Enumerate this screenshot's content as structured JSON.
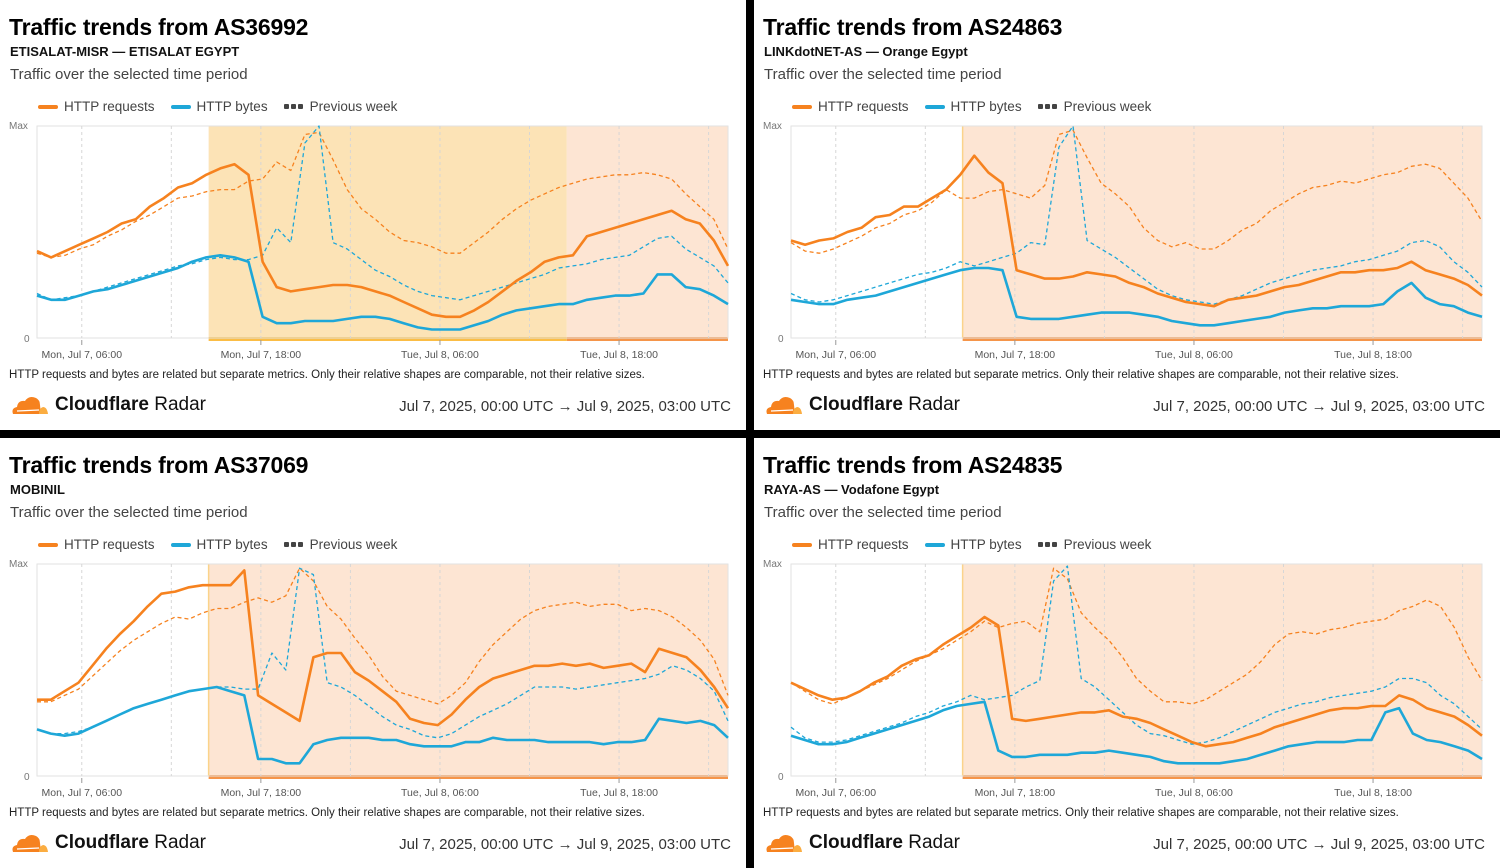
{
  "common": {
    "description": "Traffic over the selected time period",
    "legend": {
      "requests": "HTTP requests",
      "bytes": "HTTP bytes",
      "previous": "Previous week"
    },
    "note": "HTTP requests and bytes are related but separate metrics. Only their relative shapes are comparable, not their relative sizes.",
    "brand_bold": "Cloudflare",
    "brand_light": " Radar",
    "date_range": "Jul 7, 2025, 00:00 UTC → Jul 9, 2025, 03:00 UTC",
    "colors": {
      "requests": "#f6821f",
      "bytes": "#1ea7d8",
      "outage_yellow": "#fce3b6",
      "outage_orange": "#fde5d3",
      "bar_yellow": "#fbbd45",
      "bar_orange": "#f5954a"
    }
  },
  "panels": [
    {
      "title": "Traffic trends from AS36992",
      "subtitle": "ETISALAT-MISR — ETISALAT EGYPT"
    },
    {
      "title": "Traffic trends from AS24863",
      "subtitle": "LINKdotNET-AS — Orange Egypt"
    },
    {
      "title": "Traffic trends from AS37069",
      "subtitle": "MOBINIL"
    },
    {
      "title": "Traffic trends from AS24835",
      "subtitle": "RAYA-AS — Vodafone Egypt"
    }
  ],
  "chart_data": [
    {
      "type": "line",
      "title": "Traffic trends from AS36992",
      "x_start": "Jul 7 03:00 UTC",
      "x_step_hours": 1,
      "xticks": [
        "Mon, Jul 7, 06:00",
        "Mon, Jul 7, 18:00",
        "Tue, Jul 8, 06:00",
        "Tue, Jul 8, 18:00"
      ],
      "yticks": [
        "0",
        "Max"
      ],
      "ylim": [
        0,
        1
      ],
      "outages": [
        {
          "start_hour": 14.5,
          "end_hour": 38.5,
          "kind": "partial"
        },
        {
          "start_hour": 38.5,
          "end_hour": 51,
          "kind": "recovery"
        }
      ],
      "series": [
        {
          "name": "HTTP requests",
          "values": [
            0.41,
            0.38,
            0.41,
            0.44,
            0.47,
            0.5,
            0.54,
            0.56,
            0.62,
            0.66,
            0.71,
            0.73,
            0.77,
            0.8,
            0.82,
            0.77,
            0.36,
            0.24,
            0.22,
            0.23,
            0.24,
            0.25,
            0.25,
            0.24,
            0.22,
            0.2,
            0.17,
            0.14,
            0.11,
            0.1,
            0.1,
            0.13,
            0.17,
            0.22,
            0.27,
            0.31,
            0.36,
            0.38,
            0.39,
            0.48,
            0.5,
            0.52,
            0.54,
            0.56,
            0.58,
            0.6,
            0.56,
            0.54,
            0.46,
            0.34
          ]
        },
        {
          "name": "HTTP bytes",
          "values": [
            0.2,
            0.18,
            0.18,
            0.2,
            0.22,
            0.23,
            0.25,
            0.27,
            0.29,
            0.31,
            0.33,
            0.36,
            0.38,
            0.39,
            0.38,
            0.36,
            0.1,
            0.07,
            0.07,
            0.08,
            0.08,
            0.08,
            0.09,
            0.1,
            0.1,
            0.09,
            0.07,
            0.05,
            0.04,
            0.04,
            0.04,
            0.06,
            0.08,
            0.11,
            0.13,
            0.14,
            0.15,
            0.16,
            0.16,
            0.18,
            0.19,
            0.2,
            0.2,
            0.21,
            0.3,
            0.3,
            0.24,
            0.23,
            0.2,
            0.16
          ]
        },
        {
          "name": "HTTP requests (previous week)",
          "dashed": true,
          "values": [
            0.4,
            0.38,
            0.39,
            0.42,
            0.44,
            0.48,
            0.51,
            0.55,
            0.58,
            0.62,
            0.66,
            0.67,
            0.69,
            0.7,
            0.7,
            0.74,
            0.75,
            0.83,
            0.79,
            0.96,
            0.97,
            0.84,
            0.7,
            0.61,
            0.56,
            0.5,
            0.46,
            0.45,
            0.43,
            0.4,
            0.4,
            0.45,
            0.5,
            0.56,
            0.61,
            0.65,
            0.68,
            0.71,
            0.73,
            0.75,
            0.76,
            0.77,
            0.77,
            0.78,
            0.77,
            0.75,
            0.68,
            0.62,
            0.56,
            0.42
          ]
        },
        {
          "name": "HTTP bytes (previous week)",
          "dashed": true,
          "values": [
            0.21,
            0.18,
            0.19,
            0.2,
            0.22,
            0.24,
            0.26,
            0.28,
            0.3,
            0.32,
            0.34,
            0.35,
            0.37,
            0.38,
            0.37,
            0.37,
            0.39,
            0.52,
            0.45,
            0.92,
            1.0,
            0.45,
            0.42,
            0.37,
            0.32,
            0.29,
            0.25,
            0.22,
            0.2,
            0.19,
            0.18,
            0.2,
            0.22,
            0.24,
            0.26,
            0.28,
            0.3,
            0.33,
            0.34,
            0.35,
            0.37,
            0.38,
            0.39,
            0.43,
            0.47,
            0.48,
            0.42,
            0.38,
            0.34,
            0.26
          ]
        }
      ]
    },
    {
      "type": "line",
      "title": "Traffic trends from AS24863",
      "x_start": "Jul 7 03:00 UTC",
      "x_step_hours": 1,
      "xticks": [
        "Mon, Jul 7, 06:00",
        "Mon, Jul 7, 18:00",
        "Tue, Jul 8, 06:00",
        "Tue, Jul 8, 18:00"
      ],
      "yticks": [
        "0",
        "Max"
      ],
      "ylim": [
        0,
        1
      ],
      "outages": [
        {
          "start_hour": 14.5,
          "end_hour": 51,
          "kind": "recovery"
        }
      ],
      "series": [
        {
          "name": "HTTP requests",
          "values": [
            0.46,
            0.44,
            0.46,
            0.47,
            0.5,
            0.52,
            0.57,
            0.58,
            0.62,
            0.62,
            0.66,
            0.7,
            0.77,
            0.86,
            0.78,
            0.73,
            0.32,
            0.3,
            0.28,
            0.28,
            0.29,
            0.31,
            0.3,
            0.29,
            0.26,
            0.24,
            0.21,
            0.19,
            0.17,
            0.16,
            0.15,
            0.18,
            0.19,
            0.2,
            0.22,
            0.24,
            0.25,
            0.27,
            0.29,
            0.31,
            0.31,
            0.32,
            0.32,
            0.33,
            0.36,
            0.32,
            0.3,
            0.28,
            0.25,
            0.2
          ]
        },
        {
          "name": "HTTP bytes",
          "values": [
            0.18,
            0.17,
            0.16,
            0.16,
            0.18,
            0.19,
            0.2,
            0.22,
            0.24,
            0.26,
            0.28,
            0.3,
            0.32,
            0.33,
            0.33,
            0.32,
            0.1,
            0.09,
            0.09,
            0.09,
            0.1,
            0.11,
            0.12,
            0.12,
            0.12,
            0.11,
            0.1,
            0.08,
            0.07,
            0.06,
            0.06,
            0.07,
            0.08,
            0.09,
            0.1,
            0.12,
            0.13,
            0.14,
            0.14,
            0.15,
            0.15,
            0.15,
            0.16,
            0.22,
            0.26,
            0.19,
            0.16,
            0.15,
            0.12,
            0.1
          ]
        },
        {
          "name": "HTTP requests (previous week)",
          "dashed": true,
          "values": [
            0.45,
            0.41,
            0.4,
            0.42,
            0.45,
            0.48,
            0.52,
            0.54,
            0.58,
            0.6,
            0.64,
            0.7,
            0.66,
            0.66,
            0.69,
            0.7,
            0.68,
            0.66,
            0.72,
            0.96,
            0.98,
            0.85,
            0.73,
            0.68,
            0.62,
            0.52,
            0.46,
            0.43,
            0.45,
            0.42,
            0.42,
            0.46,
            0.51,
            0.54,
            0.6,
            0.64,
            0.68,
            0.71,
            0.72,
            0.74,
            0.73,
            0.75,
            0.77,
            0.78,
            0.81,
            0.82,
            0.8,
            0.73,
            0.66,
            0.55
          ]
        },
        {
          "name": "HTTP bytes (previous week)",
          "dashed": true,
          "values": [
            0.21,
            0.18,
            0.17,
            0.18,
            0.2,
            0.22,
            0.24,
            0.26,
            0.28,
            0.3,
            0.31,
            0.33,
            0.36,
            0.34,
            0.36,
            0.38,
            0.4,
            0.45,
            0.44,
            0.9,
            1.0,
            0.46,
            0.42,
            0.38,
            0.33,
            0.28,
            0.23,
            0.2,
            0.18,
            0.17,
            0.16,
            0.18,
            0.2,
            0.23,
            0.26,
            0.28,
            0.3,
            0.32,
            0.33,
            0.34,
            0.36,
            0.37,
            0.39,
            0.41,
            0.45,
            0.46,
            0.43,
            0.36,
            0.31,
            0.24
          ]
        }
      ]
    },
    {
      "type": "line",
      "title": "Traffic trends from AS37069",
      "x_start": "Jul 7 03:00 UTC",
      "x_step_hours": 1,
      "xticks": [
        "Mon, Jul 7, 06:00",
        "Mon, Jul 7, 18:00",
        "Tue, Jul 8, 06:00",
        "Tue, Jul 8, 18:00"
      ],
      "yticks": [
        "0",
        "Max"
      ],
      "ylim": [
        0,
        1
      ],
      "outages": [
        {
          "start_hour": 14.5,
          "end_hour": 51,
          "kind": "recovery"
        }
      ],
      "series": [
        {
          "name": "HTTP requests",
          "values": [
            0.36,
            0.36,
            0.4,
            0.44,
            0.52,
            0.6,
            0.67,
            0.73,
            0.8,
            0.86,
            0.87,
            0.89,
            0.9,
            0.9,
            0.9,
            0.97,
            0.38,
            0.34,
            0.3,
            0.26,
            0.56,
            0.58,
            0.58,
            0.49,
            0.45,
            0.4,
            0.35,
            0.27,
            0.25,
            0.24,
            0.29,
            0.36,
            0.42,
            0.46,
            0.48,
            0.5,
            0.52,
            0.52,
            0.53,
            0.52,
            0.53,
            0.51,
            0.52,
            0.53,
            0.49,
            0.6,
            0.58,
            0.56,
            0.5,
            0.42,
            0.32
          ]
        },
        {
          "name": "HTTP bytes",
          "values": [
            0.22,
            0.2,
            0.19,
            0.2,
            0.23,
            0.26,
            0.29,
            0.32,
            0.34,
            0.36,
            0.38,
            0.4,
            0.41,
            0.42,
            0.4,
            0.38,
            0.08,
            0.08,
            0.06,
            0.06,
            0.15,
            0.17,
            0.18,
            0.18,
            0.18,
            0.17,
            0.17,
            0.15,
            0.14,
            0.14,
            0.14,
            0.16,
            0.16,
            0.18,
            0.17,
            0.17,
            0.17,
            0.16,
            0.16,
            0.16,
            0.16,
            0.15,
            0.16,
            0.16,
            0.17,
            0.27,
            0.26,
            0.25,
            0.26,
            0.24,
            0.18
          ]
        },
        {
          "name": "HTTP requests (previous week)",
          "dashed": true,
          "values": [
            0.35,
            0.35,
            0.38,
            0.41,
            0.47,
            0.53,
            0.59,
            0.64,
            0.68,
            0.72,
            0.75,
            0.74,
            0.77,
            0.79,
            0.79,
            0.82,
            0.84,
            0.82,
            0.85,
            0.98,
            0.92,
            0.8,
            0.74,
            0.65,
            0.57,
            0.47,
            0.4,
            0.38,
            0.36,
            0.34,
            0.38,
            0.44,
            0.54,
            0.62,
            0.68,
            0.74,
            0.78,
            0.8,
            0.81,
            0.82,
            0.8,
            0.81,
            0.81,
            0.78,
            0.79,
            0.78,
            0.75,
            0.7,
            0.64,
            0.55,
            0.38
          ]
        },
        {
          "name": "HTTP bytes (previous week)",
          "dashed": true,
          "values": [
            0.22,
            0.2,
            0.2,
            0.21,
            0.23,
            0.26,
            0.29,
            0.32,
            0.34,
            0.36,
            0.38,
            0.4,
            0.41,
            0.42,
            0.42,
            0.41,
            0.41,
            0.58,
            0.5,
            0.98,
            0.95,
            0.44,
            0.42,
            0.38,
            0.33,
            0.28,
            0.24,
            0.22,
            0.19,
            0.18,
            0.2,
            0.24,
            0.28,
            0.31,
            0.34,
            0.38,
            0.42,
            0.42,
            0.42,
            0.41,
            0.42,
            0.43,
            0.44,
            0.45,
            0.46,
            0.48,
            0.52,
            0.5,
            0.46,
            0.4,
            0.26
          ]
        }
      ]
    },
    {
      "type": "line",
      "title": "Traffic trends from AS24835",
      "x_start": "Jul 7 03:00 UTC",
      "x_step_hours": 1,
      "xticks": [
        "Mon, Jul 7, 06:00",
        "Mon, Jul 7, 18:00",
        "Tue, Jul 8, 06:00",
        "Tue, Jul 8, 18:00"
      ],
      "yticks": [
        "0",
        "Max"
      ],
      "ylim": [
        0,
        1
      ],
      "outages": [
        {
          "start_hour": 14.5,
          "end_hour": 51,
          "kind": "recovery"
        }
      ],
      "series": [
        {
          "name": "HTTP requests",
          "values": [
            0.44,
            0.41,
            0.38,
            0.36,
            0.37,
            0.4,
            0.44,
            0.47,
            0.52,
            0.55,
            0.57,
            0.62,
            0.66,
            0.7,
            0.75,
            0.71,
            0.27,
            0.26,
            0.27,
            0.28,
            0.29,
            0.3,
            0.3,
            0.31,
            0.28,
            0.27,
            0.25,
            0.22,
            0.19,
            0.16,
            0.14,
            0.15,
            0.16,
            0.18,
            0.2,
            0.23,
            0.25,
            0.27,
            0.29,
            0.31,
            0.32,
            0.32,
            0.33,
            0.33,
            0.38,
            0.36,
            0.32,
            0.3,
            0.28,
            0.24,
            0.19
          ]
        },
        {
          "name": "HTTP bytes",
          "values": [
            0.19,
            0.17,
            0.15,
            0.15,
            0.16,
            0.18,
            0.2,
            0.22,
            0.24,
            0.26,
            0.28,
            0.31,
            0.33,
            0.34,
            0.35,
            0.12,
            0.09,
            0.09,
            0.1,
            0.1,
            0.1,
            0.11,
            0.11,
            0.12,
            0.11,
            0.1,
            0.09,
            0.07,
            0.06,
            0.06,
            0.06,
            0.06,
            0.07,
            0.08,
            0.1,
            0.12,
            0.14,
            0.15,
            0.16,
            0.16,
            0.16,
            0.17,
            0.17,
            0.3,
            0.32,
            0.2,
            0.17,
            0.16,
            0.14,
            0.12,
            0.08
          ]
        },
        {
          "name": "HTTP requests (previous week)",
          "dashed": true,
          "values": [
            0.44,
            0.4,
            0.36,
            0.34,
            0.37,
            0.4,
            0.43,
            0.46,
            0.5,
            0.54,
            0.57,
            0.6,
            0.64,
            0.68,
            0.73,
            0.7,
            0.72,
            0.73,
            0.68,
            0.98,
            0.93,
            0.77,
            0.7,
            0.64,
            0.56,
            0.46,
            0.4,
            0.35,
            0.35,
            0.34,
            0.36,
            0.4,
            0.44,
            0.48,
            0.54,
            0.62,
            0.67,
            0.68,
            0.67,
            0.69,
            0.7,
            0.72,
            0.73,
            0.74,
            0.78,
            0.8,
            0.83,
            0.8,
            0.7,
            0.56,
            0.45
          ]
        },
        {
          "name": "HTTP bytes (previous week)",
          "dashed": true,
          "values": [
            0.23,
            0.18,
            0.16,
            0.16,
            0.17,
            0.19,
            0.21,
            0.23,
            0.25,
            0.28,
            0.3,
            0.33,
            0.35,
            0.38,
            0.36,
            0.37,
            0.38,
            0.42,
            0.45,
            0.92,
            0.99,
            0.46,
            0.42,
            0.36,
            0.3,
            0.24,
            0.2,
            0.19,
            0.17,
            0.15,
            0.16,
            0.18,
            0.21,
            0.24,
            0.27,
            0.3,
            0.32,
            0.34,
            0.35,
            0.37,
            0.38,
            0.39,
            0.4,
            0.42,
            0.46,
            0.46,
            0.44,
            0.38,
            0.34,
            0.28,
            0.22
          ]
        }
      ]
    }
  ]
}
